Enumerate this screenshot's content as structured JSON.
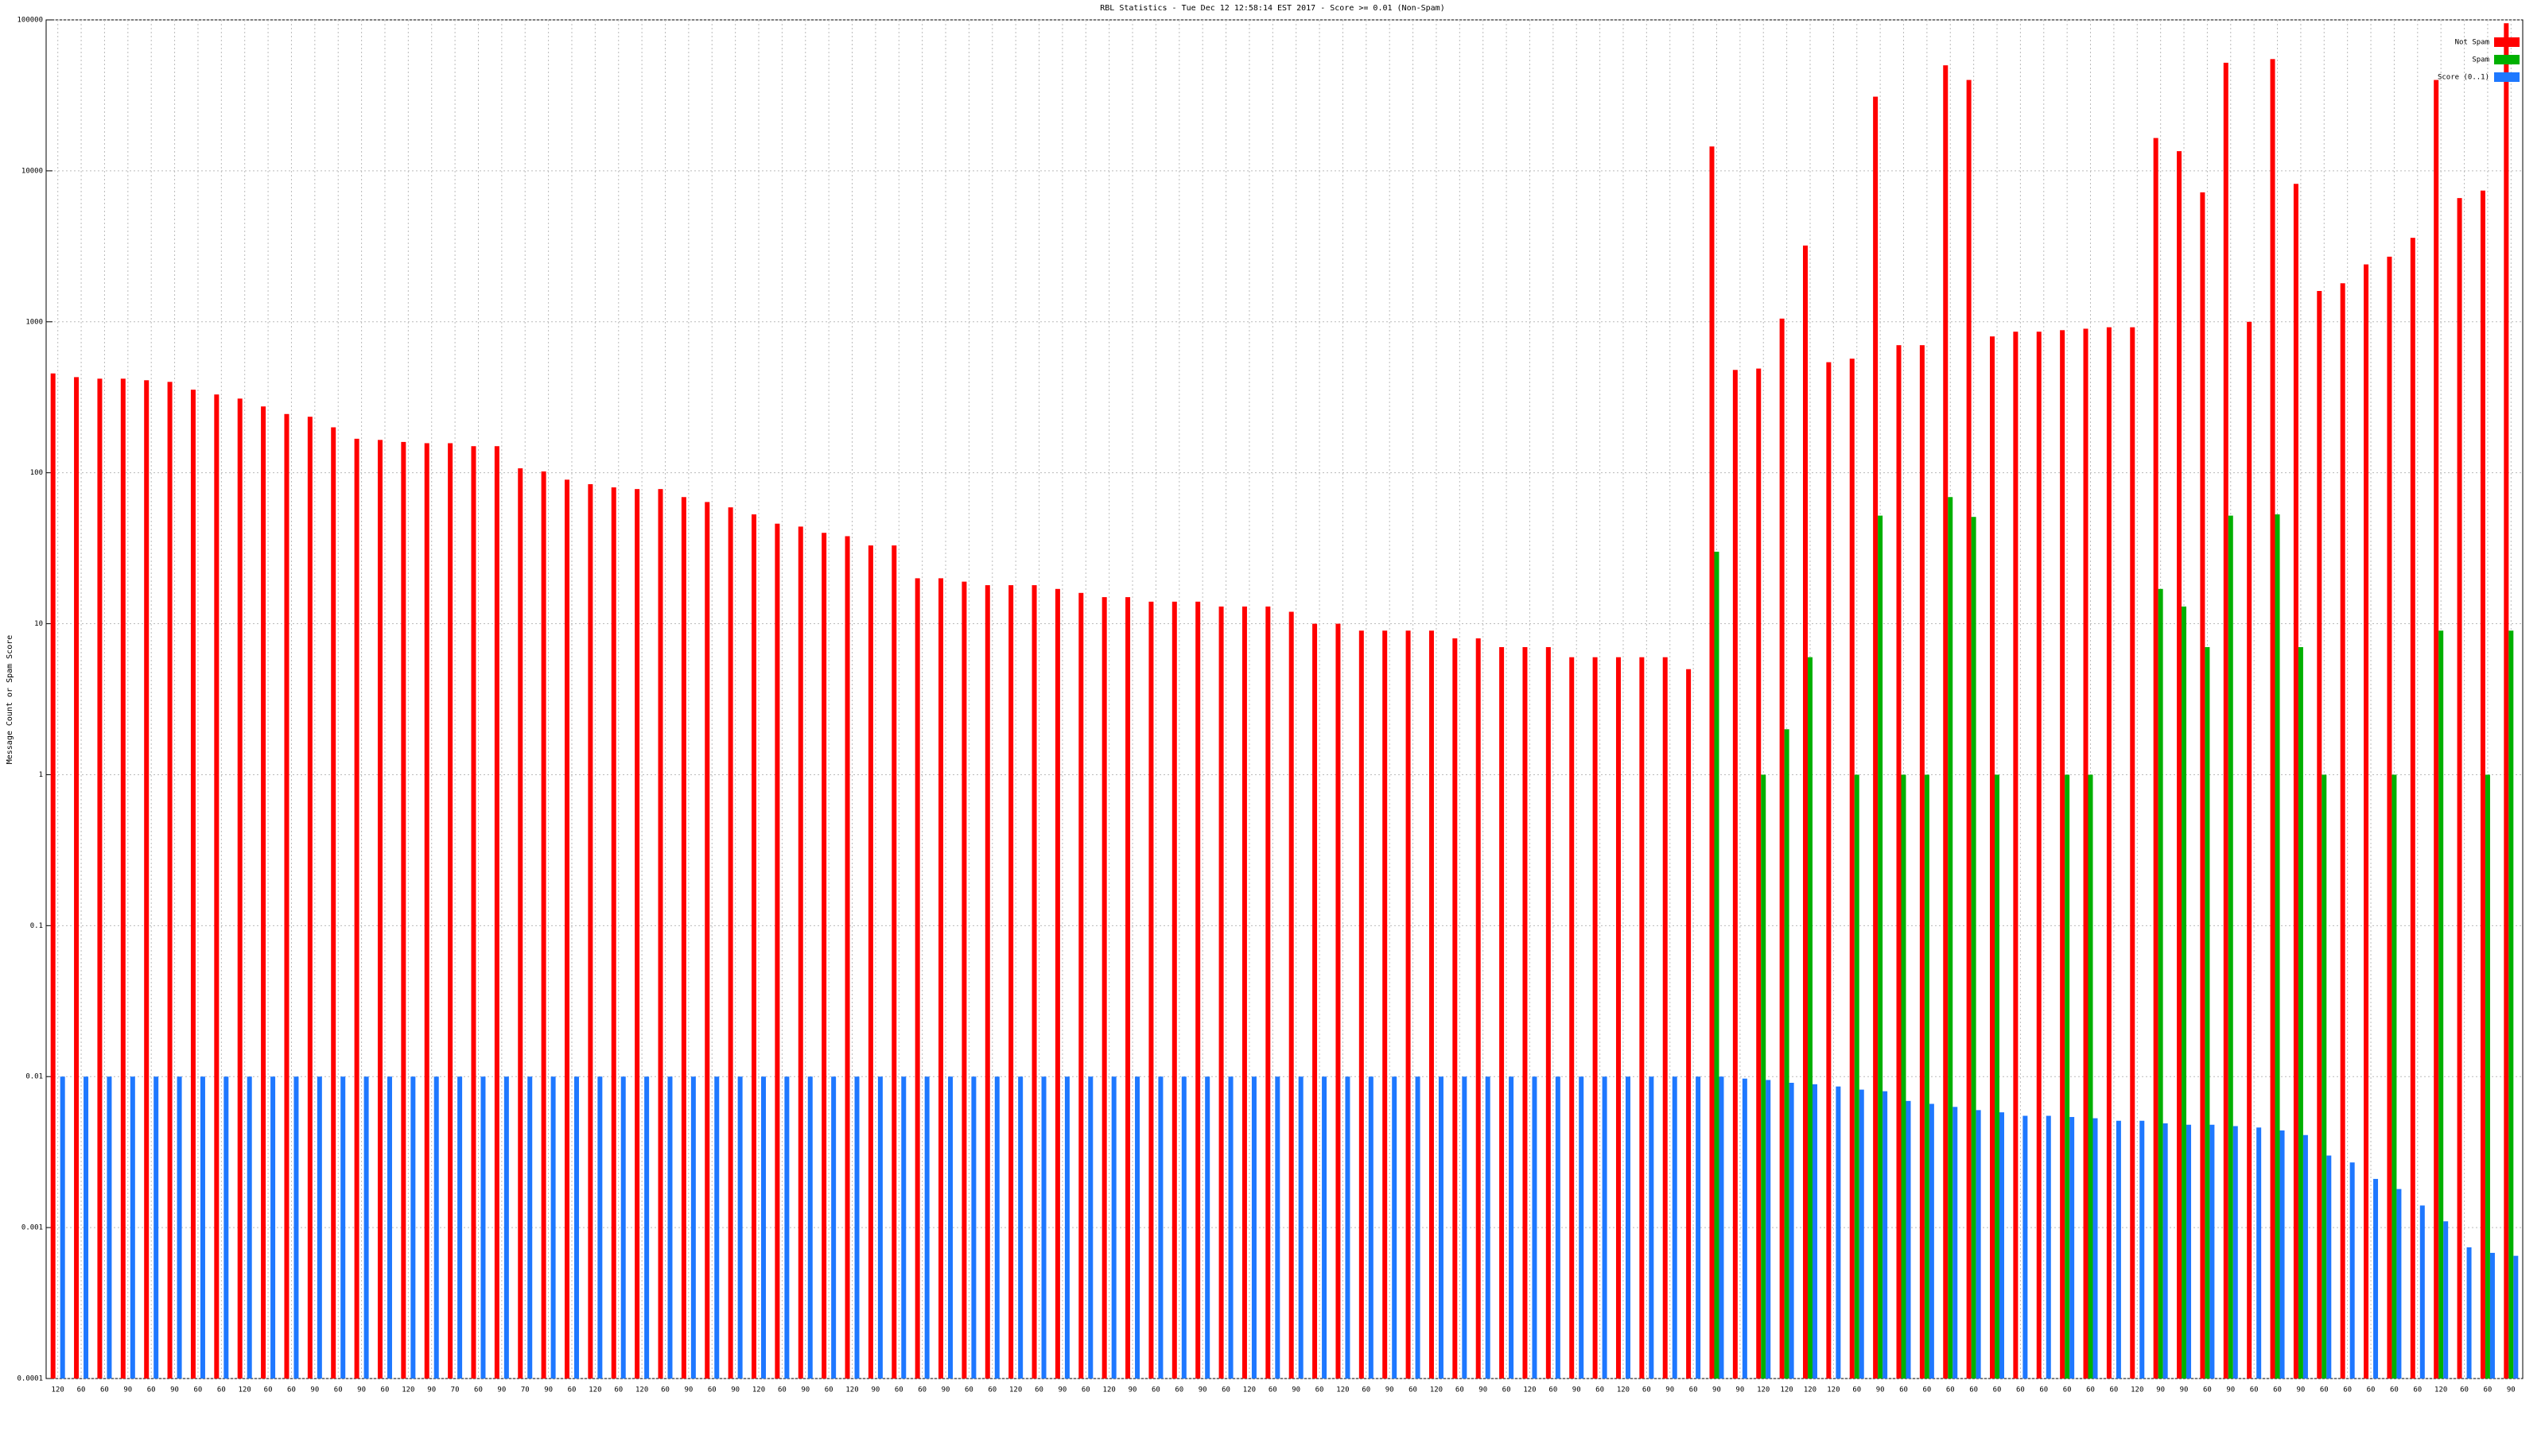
{
  "chart_data": {
    "type": "bar",
    "title": "RBL Statistics - Tue Dec 12 12:58:14 EST 2017 - Score >= 0.01 (Non-Spam)",
    "y_label": "Message Count or Spam Score",
    "log_scale": true,
    "grid": true,
    "legend": "top-right",
    "ylim": [
      0.0001,
      100000
    ],
    "yticks": [
      0.0001,
      0.001,
      0.01,
      0.1,
      1,
      10,
      100,
      1000,
      10000,
      100000
    ],
    "categories": [
      "120",
      "60",
      "60",
      "90",
      "60",
      "90",
      "60",
      "60",
      "120",
      "60",
      "60",
      "90",
      "60",
      "90",
      "60",
      "120",
      "90",
      "70",
      "60",
      "90",
      "70",
      "90",
      "60",
      "120",
      "60",
      "120",
      "60",
      "90",
      "60",
      "90",
      "120",
      "60",
      "90",
      "60",
      "120",
      "90",
      "60",
      "60",
      "90",
      "60",
      "60",
      "120",
      "60",
      "90",
      "60",
      "120",
      "90",
      "60",
      "60",
      "90",
      "60",
      "120",
      "60",
      "90",
      "60",
      "120",
      "60",
      "90",
      "60",
      "120",
      "60",
      "90",
      "60",
      "120",
      "60",
      "90",
      "60",
      "120",
      "60",
      "90",
      "60",
      "90",
      "90",
      "120",
      "120",
      "120",
      "120",
      "60",
      "90",
      "60",
      "60",
      "60",
      "60",
      "60",
      "60",
      "60",
      "60",
      "60",
      "60",
      "120",
      "90",
      "90",
      "60",
      "90",
      "60",
      "60",
      "90",
      "60",
      "60",
      "60",
      "60",
      "60",
      "120",
      "60",
      "60",
      "90"
    ],
    "series": [
      {
        "name": "Not Spam",
        "color": "#ff0000",
        "values": [
          455,
          430,
          420,
          420,
          410,
          400,
          355,
          330,
          310,
          275,
          245,
          235,
          200,
          168,
          165,
          160,
          157,
          157,
          150,
          150,
          107,
          102,
          90,
          84,
          80,
          78,
          78,
          69,
          64,
          59,
          53,
          46,
          44,
          40,
          38,
          33,
          33,
          20,
          20,
          19,
          18,
          18,
          18,
          17,
          16,
          15,
          15,
          14,
          14,
          14,
          13,
          13,
          13,
          12,
          10,
          10,
          9,
          9,
          9,
          9,
          8,
          8,
          7,
          7,
          7,
          6,
          6,
          6,
          6,
          6,
          5,
          14500,
          480,
          490,
          1050,
          3200,
          540,
          570,
          31000,
          700,
          700,
          50000,
          40000,
          800,
          860,
          860,
          880,
          900,
          920,
          920,
          16500,
          13500,
          7200,
          52000,
          1000,
          55000,
          8200,
          1600,
          1800,
          2400,
          2700,
          3600,
          40000,
          6600,
          7400,
          95000
        ]
      },
      {
        "name": "Spam",
        "color": "#00b000",
        "values": [
          null,
          null,
          null,
          null,
          null,
          null,
          null,
          null,
          null,
          null,
          null,
          null,
          null,
          null,
          null,
          null,
          null,
          null,
          null,
          null,
          null,
          null,
          null,
          null,
          null,
          null,
          null,
          null,
          null,
          null,
          null,
          null,
          null,
          null,
          null,
          null,
          null,
          null,
          null,
          null,
          null,
          null,
          null,
          null,
          null,
          null,
          null,
          null,
          null,
          null,
          null,
          null,
          null,
          null,
          null,
          null,
          null,
          null,
          null,
          null,
          null,
          null,
          null,
          null,
          null,
          null,
          null,
          null,
          null,
          null,
          null,
          30,
          null,
          1,
          2,
          6,
          null,
          1,
          52,
          1,
          1,
          69,
          51,
          1,
          null,
          null,
          1,
          1,
          null,
          null,
          17,
          13,
          7,
          52,
          null,
          53,
          7,
          1,
          null,
          null,
          1,
          null,
          9,
          null,
          1,
          9
        ]
      },
      {
        "name": "Score (0..1)",
        "color": "#1e78ff",
        "values": [
          0.01,
          0.01,
          0.01,
          0.01,
          0.01,
          0.01,
          0.01,
          0.01,
          0.01,
          0.01,
          0.01,
          0.01,
          0.01,
          0.01,
          0.01,
          0.01,
          0.01,
          0.01,
          0.01,
          0.01,
          0.01,
          0.01,
          0.01,
          0.01,
          0.01,
          0.01,
          0.01,
          0.01,
          0.01,
          0.01,
          0.01,
          0.01,
          0.01,
          0.01,
          0.01,
          0.01,
          0.01,
          0.01,
          0.01,
          0.01,
          0.01,
          0.01,
          0.01,
          0.01,
          0.01,
          0.01,
          0.01,
          0.01,
          0.01,
          0.01,
          0.01,
          0.01,
          0.01,
          0.01,
          0.01,
          0.01,
          0.01,
          0.01,
          0.01,
          0.01,
          0.01,
          0.01,
          0.01,
          0.01,
          0.01,
          0.01,
          0.01,
          0.01,
          0.01,
          0.01,
          0.01,
          0.01,
          0.0097,
          0.0095,
          0.0091,
          0.0089,
          0.0086,
          0.0082,
          0.008,
          0.0069,
          0.0066,
          0.0063,
          0.006,
          0.0058,
          0.0055,
          0.0055,
          0.0054,
          0.0053,
          0.0051,
          0.0051,
          0.0049,
          0.0048,
          0.0048,
          0.0047,
          0.0046,
          0.0044,
          0.0041,
          0.003,
          0.0027,
          0.0021,
          0.0018,
          0.0014,
          0.0011,
          0.00074,
          0.00068,
          0.00065
        ]
      }
    ]
  }
}
